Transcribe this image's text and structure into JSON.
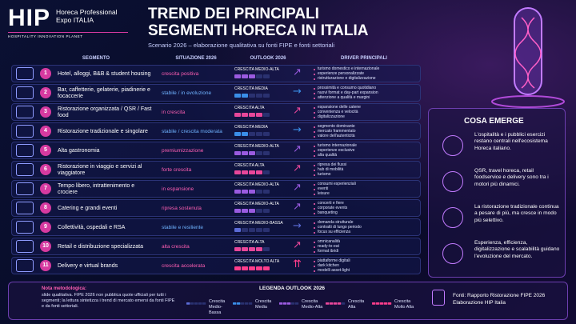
{
  "logo": {
    "mark": "HIP",
    "name_lines": [
      "Horeca Professional",
      "Expo ITALIA"
    ],
    "tagline": "HOSPITALITY INNOVATION PLANET"
  },
  "header": {
    "title_lines": [
      "TREND DEI PRINCIPALI",
      "SEGMENTI HORECA IN ITALIA"
    ],
    "subtitle": "Scenario 2026 – elaborazione qualitativa su fonti FIPE e fonti settoriali"
  },
  "table": {
    "columns": [
      "SEGMENTO",
      "SITUAZIONE 2026",
      "OUTLOOK 2026",
      "DRIVER PRINCIPALI"
    ],
    "rows": [
      {
        "num": "1",
        "segment": "Hotel, alloggi, B&B & student housing",
        "situation": "crescita positiva",
        "outlook": "CRESCITA MEDIO-ALTA",
        "drivers": [
          "turismo domestico e internazionale",
          "esperienze personalizzate",
          "ristrutturazione e digitalizzazione"
        ]
      },
      {
        "num": "2",
        "segment": "Bar, caffetterie, gelaterie, piadinerie e focaccerie",
        "situation": "stabile / in evoluzione",
        "outlook": "CRESCITA MEDIA",
        "drivers": [
          "prossimità e consumo quotidiano",
          "nuovi format e day-part expansion",
          "attenzione a qualità e margini"
        ]
      },
      {
        "num": "3",
        "segment": "Ristorazione organizzata / QSR / Fast food",
        "situation": "in crescita",
        "outlook": "CRESCITA ALTA",
        "drivers": [
          "espansione delle catene",
          "convenienza e velocità",
          "digitalizzazione"
        ]
      },
      {
        "num": "4",
        "segment": "Ristorazione tradizionale e singolare",
        "situation": "stabile / crescita moderata",
        "outlook": "CRESCITA MEDIA",
        "drivers": [
          "segmento dominante",
          "mercato frammentato",
          "valore dell'autenticità"
        ]
      },
      {
        "num": "5",
        "segment": "Alta gastronomia",
        "situation": "premiumizzazione",
        "outlook": "CRESCITA MEDIO-ALTA",
        "drivers": [
          "turismo internazionale",
          "esperienze esclusive",
          "alta qualità"
        ]
      },
      {
        "num": "6",
        "segment": "Ristorazione in viaggio e servizi al viaggiatore",
        "situation": "forte crescita",
        "outlook": "CRESCITA ALTA",
        "drivers": [
          "ripresa dei flussi",
          "hub di mobilità",
          "turismo"
        ]
      },
      {
        "num": "7",
        "segment": "Tempo libero, intrattenimento e crociere",
        "situation": "in espansione",
        "outlook": "CRESCITA MEDIO-ALTA",
        "drivers": [
          "consumi esperienziali",
          "eventi",
          "leisure"
        ]
      },
      {
        "num": "8",
        "segment": "Catering e grandi eventi",
        "situation": "ripresa sostenuta",
        "outlook": "CRESCITA MEDIO-ALTA",
        "drivers": [
          "concerti e fiere",
          "corporate events",
          "banqueting"
        ]
      },
      {
        "num": "9",
        "segment": "Collettività, ospedali e RSA",
        "situation": "stabile e resiliente",
        "outlook": "CRESCITA MEDIO-BASSA",
        "drivers": [
          "domanda strutturale",
          "contratti di lungo periodo",
          "focus su efficienza"
        ]
      },
      {
        "num": "10",
        "segment": "Retail e distribuzione specializzata",
        "situation": "alta crescita",
        "outlook": "CRESCITA ALTA",
        "drivers": [
          "omnicanalità",
          "ready-to-eat",
          "format ibridi"
        ]
      },
      {
        "num": "11",
        "segment": "Delivery e virtual brands",
        "situation": "crescita accelerata",
        "outlook": "CRESCITA MOLTO ALTA",
        "drivers": [
          "piattaforme digitali",
          "dark kitchen",
          "modelli asset-light"
        ]
      }
    ]
  },
  "insights": {
    "title": "COSA EMERGE",
    "items": [
      "L'ospitalità e i pubblici esercizi restano centrali nell'ecosistema Horeca italiano.",
      "QSR, travel horeca, retail foodservice e delivery sono tra i motori più dinamici.",
      "La ristorazione tradizionale continua a pesare di più, ma cresce in modo più selettivo.",
      "Esperienza, efficienza, digitalizzazione e scalabilità guidano l'evoluzione del mercato."
    ]
  },
  "footer": {
    "note_title": "Nota metodologica:",
    "note": "slide qualitativa. FIPE 2026 non pubblica quote ufficiali per tutti i segmenti; la lettura sintetizza i trend di mercato emersi da fonti FIPE e da fonti settoriali.",
    "legend_title": "LEGENDA OUTLOOK 2026",
    "legend": [
      {
        "label": "Crescita Medio-Bassa",
        "color": "#5b6bd6"
      },
      {
        "label": "Crescita Media",
        "color": "#3a8ee8"
      },
      {
        "label": "Crescita Medio-Alta",
        "color": "#9a5be0"
      },
      {
        "label": "Crescita Alta",
        "color": "#e8479a"
      },
      {
        "label": "Crescita Molto Alta",
        "color": "#ff3d8b"
      }
    ],
    "sources": [
      "Fonti: Rapporto Ristorazione FIPE 2026",
      "Elaborazione HIP Italia"
    ]
  }
}
